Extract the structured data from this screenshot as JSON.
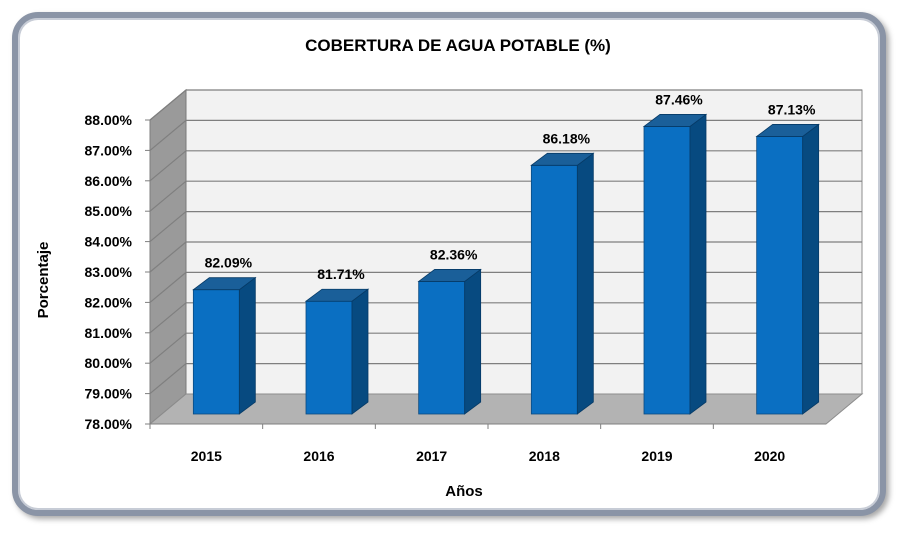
{
  "chart_data": {
    "type": "bar",
    "title": "COBERTURA DE AGUA POTABLE (%)",
    "xlabel": "Años",
    "ylabel": "Porcentaje",
    "categories": [
      "2015",
      "2016",
      "2017",
      "2018",
      "2019",
      "2020"
    ],
    "series": [
      {
        "values": [
          82.09,
          81.71,
          82.36,
          86.18,
          87.46,
          87.13
        ],
        "labels": [
          "82.09%",
          "81.71%",
          "82.36%",
          "86.18%",
          "87.46%",
          "87.13%"
        ]
      }
    ],
    "ylim": [
      78,
      88
    ],
    "yticks": [
      "78.00%",
      "79.00%",
      "80.00%",
      "81.00%",
      "82.00%",
      "83.00%",
      "84.00%",
      "85.00%",
      "86.00%",
      "87.00%",
      "88.00%"
    ],
    "grid": true,
    "legend": "none",
    "colors": {
      "bar_front": "#0a6fc2",
      "bar_side": "#074a80",
      "bar_top": "#1a5f99",
      "back_wall": "#f2f2f2",
      "side_wall": "#9a9a9a",
      "floor": "#b3b3b3",
      "frame": "#8a94a6"
    }
  }
}
